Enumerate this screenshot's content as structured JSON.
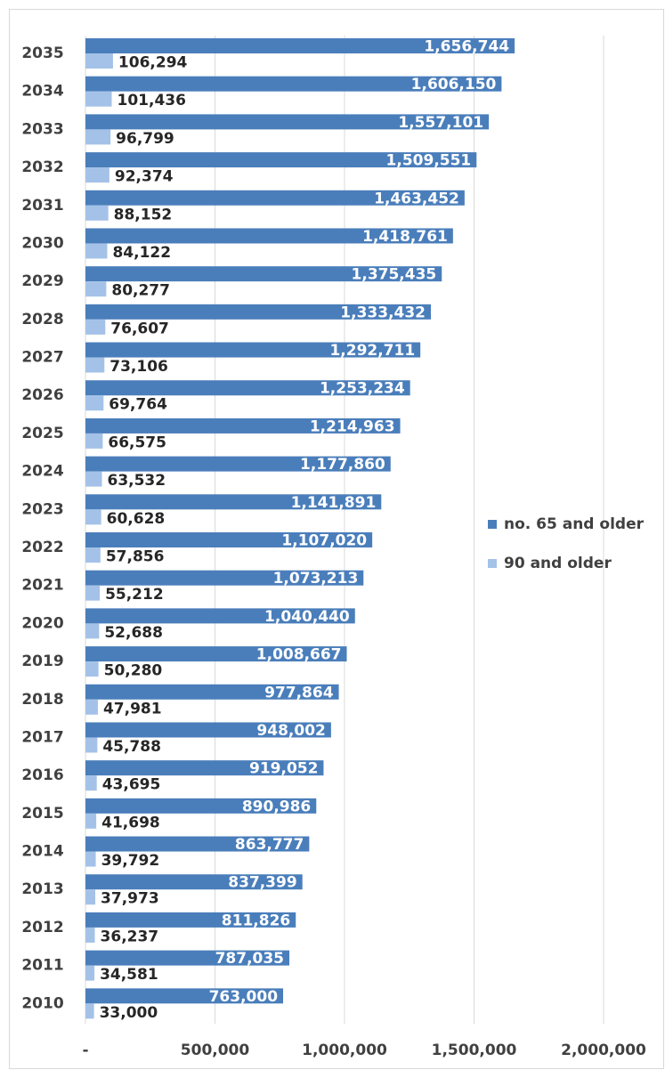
{
  "chart_data": {
    "type": "hbar",
    "categories": [
      "2035",
      "2034",
      "2033",
      "2032",
      "2031",
      "2030",
      "2029",
      "2028",
      "2027",
      "2026",
      "2025",
      "2024",
      "2023",
      "2022",
      "2021",
      "2020",
      "2019",
      "2018",
      "2017",
      "2016",
      "2015",
      "2014",
      "2013",
      "2012",
      "2011",
      "2010"
    ],
    "series": [
      {
        "name": "no. 65 and older",
        "color": "#4a7ebb",
        "values": [
          1656744,
          1606150,
          1557101,
          1509551,
          1463452,
          1418761,
          1375435,
          1333432,
          1292711,
          1253234,
          1214963,
          1177860,
          1141891,
          1107020,
          1073213,
          1040440,
          1008667,
          977864,
          948002,
          919052,
          890986,
          863777,
          837399,
          811826,
          787035,
          763000
        ],
        "value_labels": [
          "1,656,744",
          "1,606,150",
          "1,557,101",
          "1,509,551",
          "1,463,452",
          "1,418,761",
          "1,375,435",
          "1,333,432",
          "1,292,711",
          "1,253,234",
          "1,214,963",
          "1,177,860",
          "1,141,891",
          "1,107,020",
          "1,073,213",
          "1,040,440",
          "1,008,667",
          "977,864",
          "948,002",
          "919,052",
          "890,986",
          "863,777",
          "837,399",
          "811,826",
          "787,035",
          "763,000"
        ]
      },
      {
        "name": "90 and older",
        "color": "#a4c2e8",
        "values": [
          106294,
          101436,
          96799,
          92374,
          88152,
          84122,
          80277,
          76607,
          73106,
          69764,
          66575,
          63532,
          60628,
          57856,
          55212,
          52688,
          50280,
          47981,
          45788,
          43695,
          41698,
          39792,
          37973,
          36237,
          34581,
          33000
        ],
        "value_labels": [
          "106,294",
          "101,436",
          "96,799",
          "92,374",
          "88,152",
          "84,122",
          "80,277",
          "76,607",
          "73,106",
          "69,764",
          "66,575",
          "63,532",
          "60,628",
          "57,856",
          "55,212",
          "52,688",
          "50,280",
          "47,981",
          "45,788",
          "43,695",
          "41,698",
          "39,792",
          "37,973",
          "36,237",
          "34,581",
          "33,000"
        ]
      }
    ],
    "xlim": [
      0,
      2000000
    ],
    "xticks": [
      {
        "value": 0,
        "label": "-"
      },
      {
        "value": 500000,
        "label": "500,000"
      },
      {
        "value": 1000000,
        "label": "1,000,000"
      },
      {
        "value": 1500000,
        "label": "1,500,000"
      },
      {
        "value": 2000000,
        "label": "2,000,000"
      }
    ],
    "grid": true,
    "legend": "right"
  }
}
